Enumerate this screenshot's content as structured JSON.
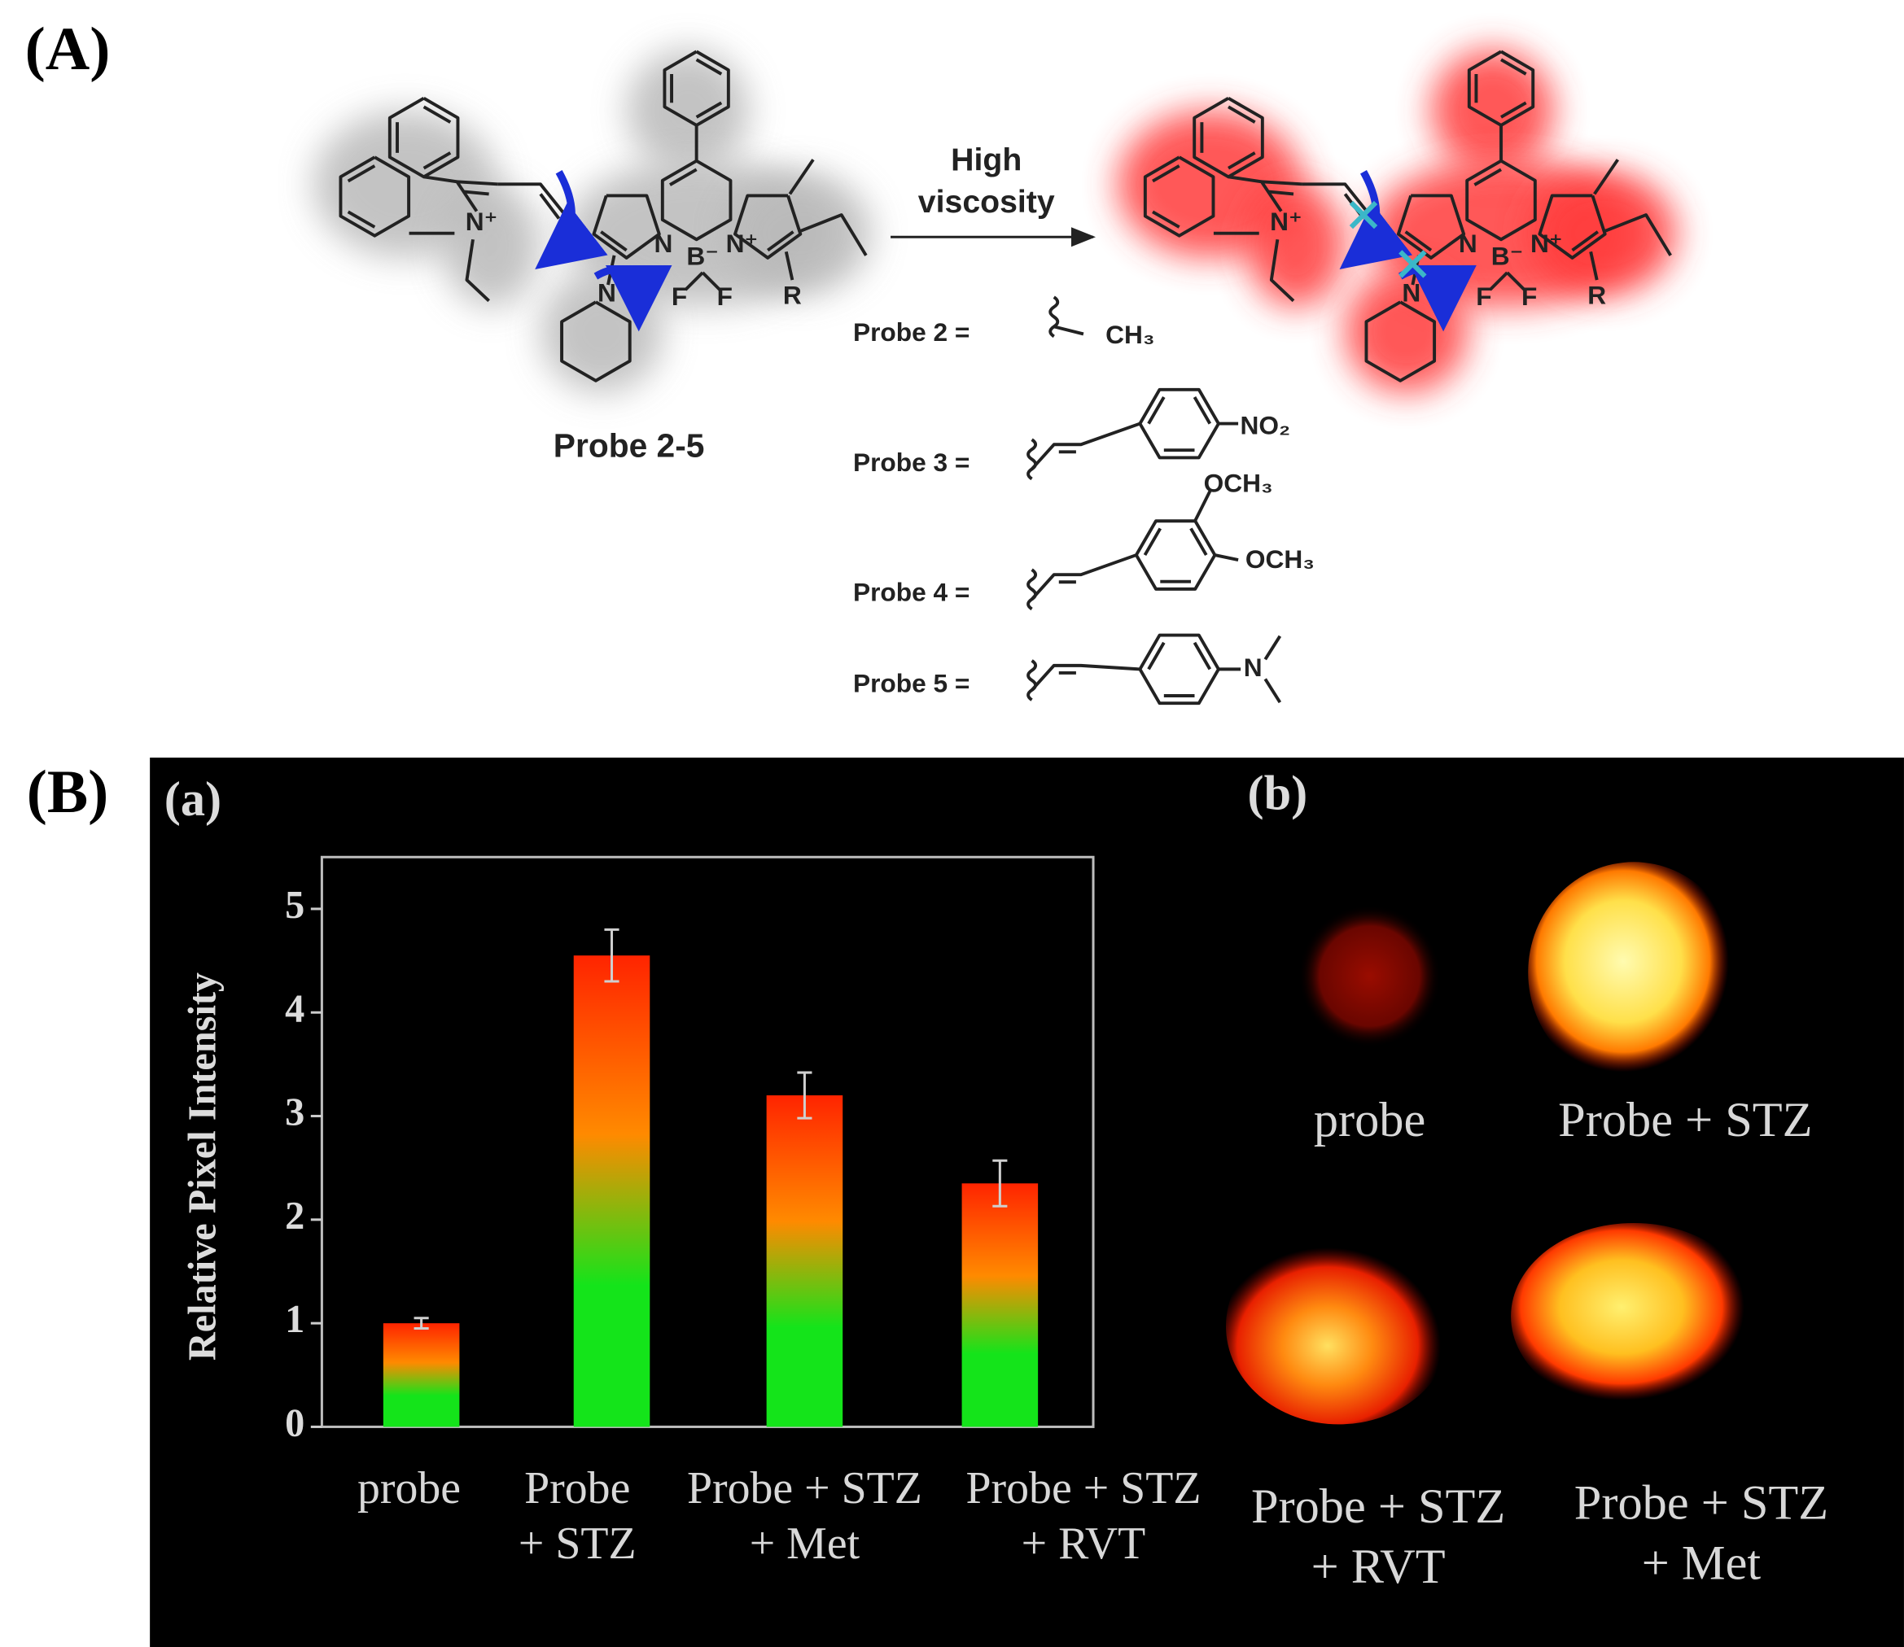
{
  "panel_a": {
    "label": "(A)",
    "reaction_condition": [
      "High",
      "viscosity"
    ],
    "probe_name": "Probe 2-5",
    "atoms": [
      "N⁺",
      "N",
      "B⁻",
      "N⁺",
      "F",
      "F",
      "N",
      "R"
    ],
    "substituents": [
      {
        "label": "Probe 2 =",
        "groups": [
          "CH₃"
        ]
      },
      {
        "label": "Probe 3 =",
        "groups": [
          "NO₂"
        ]
      },
      {
        "label": "Probe 4 =",
        "groups": [
          "OCH₃",
          "OCH₃"
        ]
      },
      {
        "label": "Probe 5 =",
        "groups": [
          "N"
        ]
      }
    ]
  },
  "panel_b": {
    "label": "(B)",
    "chart_label": "(a)",
    "image_label": "(b)",
    "image_captions": [
      "probe",
      "Probe + STZ",
      "Probe + STZ\n+ RVT",
      "Probe + STZ\n+ Met"
    ]
  },
  "chart_data": {
    "type": "bar",
    "y_label": "Relative Pixel Intensity",
    "categories": [
      "probe",
      "Probe\n+ STZ",
      "Probe + STZ\n+ Met",
      "Probe + STZ\n+ RVT"
    ],
    "values": [
      1.0,
      4.55,
      3.2,
      2.35
    ],
    "errors": [
      0.05,
      0.25,
      0.22,
      0.22
    ],
    "colors": [
      "#14e41a",
      "#ff8a00",
      "#ff2400"
    ],
    "ylim": [
      0,
      5.5
    ],
    "yticks": [
      0,
      1,
      2,
      3,
      4,
      5
    ]
  }
}
